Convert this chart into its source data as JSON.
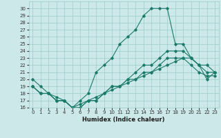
{
  "title": "",
  "xlabel": "Humidex (Indice chaleur)",
  "xlim": [
    -0.5,
    23.5
  ],
  "ylim": [
    16,
    31
  ],
  "yticks": [
    16,
    17,
    18,
    19,
    20,
    21,
    22,
    23,
    24,
    25,
    26,
    27,
    28,
    29,
    30
  ],
  "xticks": [
    0,
    1,
    2,
    3,
    4,
    5,
    6,
    7,
    8,
    9,
    10,
    11,
    12,
    13,
    14,
    15,
    16,
    17,
    18,
    19,
    20,
    21,
    22,
    23
  ],
  "background_color": "#cce8e8",
  "grid_color": "#99cccc",
  "line_color": "#1a7a6a",
  "series": [
    {
      "x": [
        0,
        1,
        2,
        3,
        4,
        5,
        6,
        7,
        8,
        9,
        10,
        11,
        12,
        13,
        14,
        15,
        16,
        17,
        18,
        19,
        20,
        21,
        22,
        23
      ],
      "y": [
        20,
        19,
        18,
        17,
        17,
        16,
        17,
        18,
        21,
        22,
        23,
        25,
        26,
        27,
        29,
        30,
        30,
        30,
        25,
        25,
        23,
        22,
        20,
        21
      ]
    },
    {
      "x": [
        0,
        1,
        2,
        3,
        4,
        5,
        6,
        7,
        8,
        9,
        10,
        11,
        12,
        13,
        14,
        15,
        16,
        17,
        18,
        19,
        20,
        21,
        22,
        23
      ],
      "y": [
        19,
        18,
        18,
        17,
        17,
        16,
        16,
        17,
        17,
        18,
        19,
        19,
        20,
        20,
        21,
        21,
        22,
        23,
        23,
        23,
        23,
        22,
        22,
        21
      ]
    },
    {
      "x": [
        0,
        1,
        2,
        3,
        4,
        5,
        6,
        7,
        8,
        9,
        10,
        11,
        12,
        13,
        14,
        15,
        16,
        17,
        18,
        19,
        20,
        21,
        22,
        23
      ],
      "y": [
        19,
        18,
        18,
        17,
        17,
        16,
        16,
        17,
        17,
        18,
        19,
        19,
        20,
        21,
        22,
        22,
        23,
        24,
        24,
        24,
        23,
        22,
        21,
        21
      ]
    },
    {
      "x": [
        0,
        1,
        2,
        3,
        4,
        5,
        6,
        7,
        8,
        9,
        10,
        11,
        12,
        13,
        14,
        15,
        16,
        17,
        18,
        19,
        20,
        21,
        22,
        23
      ],
      "y": [
        19,
        18,
        18,
        17.5,
        17,
        16,
        16.5,
        17,
        17.5,
        18,
        18.5,
        19,
        19.5,
        20,
        20.5,
        21,
        21.5,
        22,
        22.5,
        23,
        22,
        21,
        20.5,
        20.5
      ]
    }
  ]
}
